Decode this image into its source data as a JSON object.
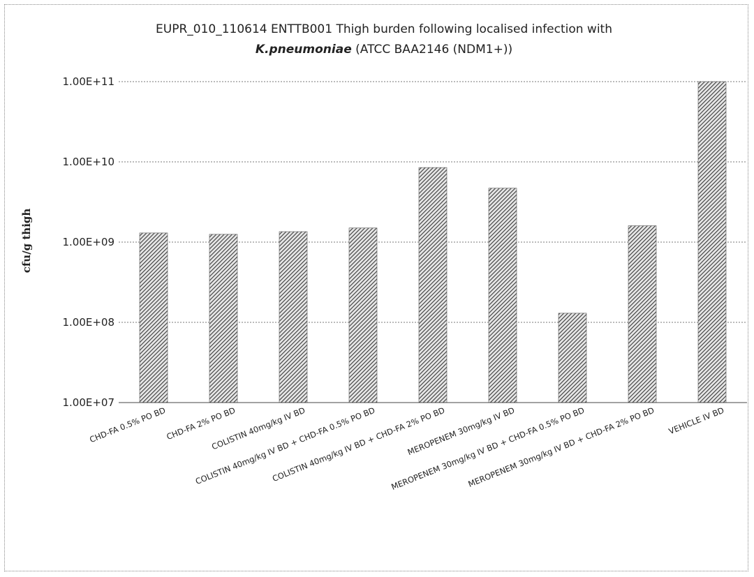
{
  "chart_data": {
    "type": "bar",
    "title_line1": "EUPR_010_110614 ENTTB001 Thigh burden following localised infection  with",
    "title_line2_italic": "K.pneumoniae",
    "title_line2_rest": " (ATCC BAA2146 (NDM1+))",
    "ylabel": "cfu/g thigh",
    "yscale": "log",
    "ylim": [
      10000000,
      100000000000
    ],
    "yticks": [
      10000000,
      100000000,
      1000000000,
      10000000000,
      100000000000
    ],
    "ytick_labels": [
      "1.00E+07",
      "1.00E+08",
      "1.00E+09",
      "1.00E+10",
      "1.00E+11"
    ],
    "grid": true,
    "categories": [
      "CHD-FA 0.5% PO BD",
      "CHD-FA 2%  PO BD",
      "COLISTIN 40mg/kg IV BD",
      "COLISTIN 40mg/kg IV BD + CHD-FA 0.5% PO BD",
      "COLISTIN 40mg/kg IV BD + CHD-FA 2% PO BD",
      "MEROPENEM 30mg/kg IV BD",
      "MEROPENEM 30mg/kg IV BD + CHD-FA 0.5% PO BD",
      "MEROPENEM 30mg/kg IV BD + CHD-FA 2% PO BD",
      "VEHICLE IV BD"
    ],
    "values": [
      1300000000,
      1250000000,
      1350000000,
      1500000000,
      8500000000,
      4700000000,
      130000000,
      1600000000,
      100000000000
    ],
    "bar_color": "#555555"
  }
}
